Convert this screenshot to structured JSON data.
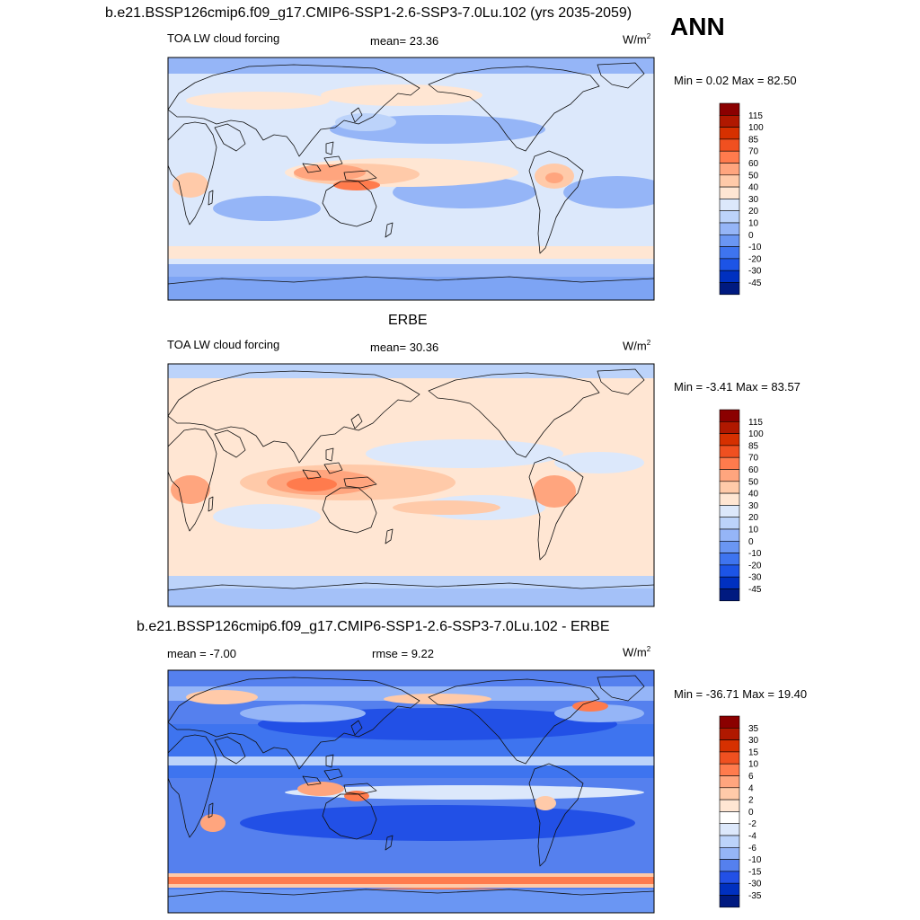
{
  "header": {
    "case_title": "b.e21.BSSP126cmip6.f09_g17.CMIP6-SSP1-2.6-SSP3-7.0Lu.102 (yrs 2035-2059)",
    "season": "ANN"
  },
  "panels": [
    {
      "id": "model",
      "title": "",
      "left_label": "TOA LW cloud forcing",
      "center_label": "mean=  23.36",
      "units": "W/m",
      "units_exp": "2",
      "minmax": "Min =   0.02 Max =  82.50",
      "colorbar": {
        "labels": [
          "115",
          "100",
          "85",
          "70",
          "60",
          "50",
          "40",
          "30",
          "20",
          "10",
          "0",
          "-10",
          "-20",
          "-30",
          "-45"
        ],
        "colors": [
          "#8b0000",
          "#b01800",
          "#d63000",
          "#f05020",
          "#ff7b4d",
          "#ffa57e",
          "#ffcaa9",
          "#ffe6d3",
          "#dce8fb",
          "#bcd3fa",
          "#95b5f7",
          "#6a96f3",
          "#3e74ef",
          "#1c54e6",
          "#0030c0",
          "#001a80"
        ]
      },
      "map": "abs"
    },
    {
      "id": "obs",
      "title": "ERBE",
      "left_label": "TOA LW cloud forcing",
      "center_label": "mean=  30.36",
      "units": "W/m",
      "units_exp": "2",
      "minmax": "Min =  -3.41 Max =  83.57",
      "colorbar": {
        "labels": [
          "115",
          "100",
          "85",
          "70",
          "60",
          "50",
          "40",
          "30",
          "20",
          "10",
          "0",
          "-10",
          "-20",
          "-30",
          "-45"
        ],
        "colors": [
          "#8b0000",
          "#b01800",
          "#d63000",
          "#f05020",
          "#ff7b4d",
          "#ffa57e",
          "#ffcaa9",
          "#ffe6d3",
          "#dce8fb",
          "#bcd3fa",
          "#95b5f7",
          "#6a96f3",
          "#3e74ef",
          "#1c54e6",
          "#0030c0",
          "#001a80"
        ]
      },
      "map": "abs"
    },
    {
      "id": "diff",
      "title": "b.e21.BSSP126cmip6.f09_g17.CMIP6-SSP1-2.6-SSP3-7.0Lu.102 - ERBE",
      "left_label": "mean =  -7.00",
      "center_label": "rmse =   9.22",
      "units": "W/m",
      "units_exp": "2",
      "minmax": "Min = -36.71 Max =  19.40",
      "colorbar": {
        "labels": [
          "35",
          "30",
          "15",
          "10",
          "6",
          "4",
          "2",
          "0",
          "-2",
          "-4",
          "-6",
          "-10",
          "-15",
          "-30",
          "-35"
        ],
        "colors": [
          "#8b0000",
          "#b01800",
          "#d63000",
          "#f05020",
          "#ff7b4d",
          "#ffa57e",
          "#ffcaa9",
          "#ffe6d3",
          "#ffffff",
          "#dce8fb",
          "#bcd3fa",
          "#95b5f7",
          "#5580ee",
          "#2250e6",
          "#0030c0",
          "#001a80"
        ]
      },
      "map": "diff"
    }
  ]
}
